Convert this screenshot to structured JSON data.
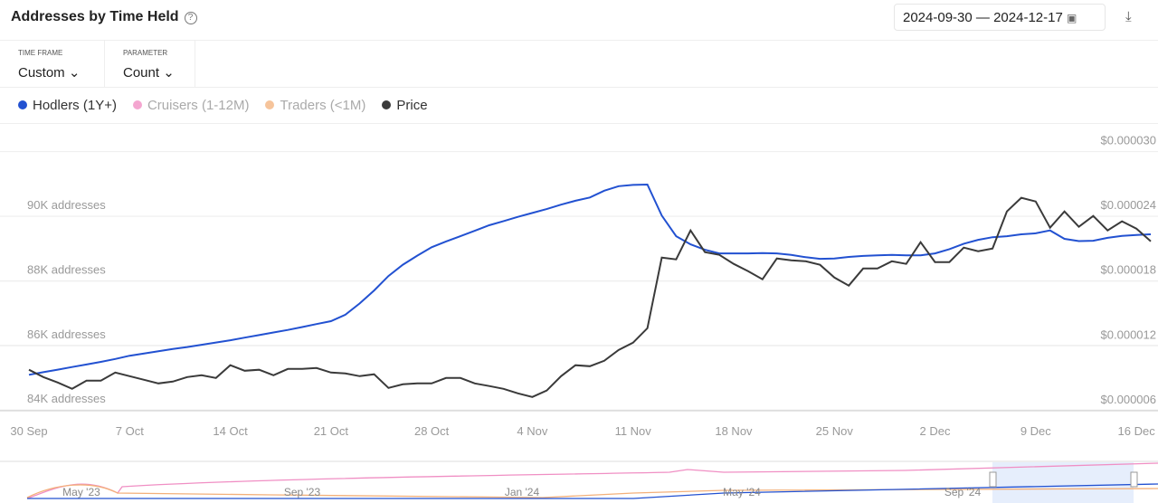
{
  "header": {
    "title": "Addresses by Time Held",
    "date_from": "2024-09-30",
    "date_separator": "—",
    "date_to": "2024-12-17"
  },
  "controls": [
    {
      "label": "TIME FRAME",
      "value": "Custom"
    },
    {
      "label": "PARAMETER",
      "value": "Count"
    }
  ],
  "navigator": {
    "labels": [
      "May '23",
      "Sep '23",
      "Jan '24",
      "May '24",
      "Sep '24"
    ]
  },
  "chart_data": {
    "type": "line",
    "categories": [
      "30 Sep",
      null,
      null,
      null,
      null,
      null,
      null,
      "7 Oct",
      null,
      null,
      null,
      null,
      null,
      null,
      "14 Oct",
      null,
      null,
      null,
      null,
      null,
      null,
      "21 Oct",
      null,
      null,
      null,
      null,
      null,
      null,
      "28 Oct",
      null,
      null,
      null,
      null,
      null,
      null,
      "4 Nov",
      null,
      null,
      null,
      null,
      null,
      null,
      "11 Nov",
      null,
      null,
      null,
      null,
      null,
      null,
      "18 Nov",
      null,
      null,
      null,
      null,
      null,
      null,
      "25 Nov",
      null,
      null,
      null,
      null,
      null,
      null,
      "2 Dec",
      null,
      null,
      null,
      null,
      null,
      null,
      "9 Dec",
      null,
      null,
      null,
      null,
      null,
      null,
      "16 Dec",
      null
    ],
    "series": [
      {
        "name": "Hodlers (1Y+)",
        "color": "#2251d1",
        "values": [
          85090,
          85170,
          85250,
          85330,
          85410,
          85490,
          85580,
          85680,
          85750,
          85820,
          85890,
          85950,
          86020,
          86090,
          86160,
          86240,
          86320,
          86400,
          86480,
          86570,
          86660,
          86750,
          86950,
          87300,
          87700,
          88150,
          88500,
          88780,
          89040,
          89220,
          89380,
          89550,
          89720,
          89850,
          89980,
          90100,
          90220,
          90360,
          90480,
          90580,
          90790,
          90930,
          90970,
          90980,
          90020,
          89380,
          89130,
          88960,
          88850,
          88850,
          88850,
          88860,
          88850,
          88800,
          88730,
          88680,
          88690,
          88740,
          88770,
          88790,
          88800,
          88790,
          88790,
          88850,
          88980,
          89150,
          89270,
          89350,
          89380,
          89440,
          89470,
          89560,
          89300,
          89230,
          89240,
          89330,
          89390,
          89420,
          89440
        ]
      },
      {
        "name": "Cruisers (1-12M)",
        "color": "#f4a6d0",
        "hidden": true
      },
      {
        "name": "Traders (<1M)",
        "color": "#f6c49b",
        "hidden": true
      },
      {
        "name": "Price",
        "color": "#3a3a3a",
        "axis": "y2",
        "values": [
          9.78e-06,
          9.1e-06,
          8.6e-06,
          8.01e-06,
          8.77e-06,
          8.77e-06,
          9.52e-06,
          9.19e-06,
          8.85e-06,
          8.52e-06,
          8.68e-06,
          9.1e-06,
          9.27e-06,
          9.02e-06,
          1.02e-05,
          9.69e-06,
          9.78e-06,
          9.27e-06,
          9.86e-06,
          9.86e-06,
          9.94e-06,
          9.52e-06,
          9.44e-06,
          9.19e-06,
          9.36e-06,
          8.1e-06,
          8.43e-06,
          8.52e-06,
          8.52e-06,
          9.02e-06,
          9.02e-06,
          8.52e-06,
          8.27e-06,
          8.01e-06,
          7.59e-06,
          7.26e-06,
          7.85e-06,
          9.19e-06,
          1.02e-05,
          1.011e-05,
          1.061e-05,
          1.162e-05,
          1.229e-05,
          1.363e-05,
          2.018e-05,
          2.001e-05,
          2.27e-05,
          2.068e-05,
          2.043e-05,
          1.959e-05,
          1.892e-05,
          1.817e-05,
          2.01e-05,
          1.993e-05,
          1.984e-05,
          1.951e-05,
          1.833e-05,
          1.758e-05,
          1.917e-05,
          1.917e-05,
          1.984e-05,
          1.959e-05,
          2.161e-05,
          1.976e-05,
          1.976e-05,
          2.11e-05,
          2.077e-05,
          2.102e-05,
          2.446e-05,
          2.572e-05,
          2.538e-05,
          2.295e-05,
          2.446e-05,
          2.303e-05,
          2.404e-05,
          2.27e-05,
          2.354e-05,
          2.286e-05,
          2.169e-05
        ]
      }
    ],
    "ylim": [
      83950,
      92000
    ],
    "yticks": [
      {
        "value": 84000,
        "label": "84K addresses"
      },
      {
        "value": 86000,
        "label": "86K addresses"
      },
      {
        "value": 88000,
        "label": "88K addresses"
      },
      {
        "value": 90000,
        "label": "90K addresses"
      }
    ],
    "y2lim": [
      5.9e-06,
      3e-05
    ],
    "y2ticks": [
      {
        "value": 6e-06,
        "label": "$0.000006"
      },
      {
        "value": 1.2e-05,
        "label": "$0.000012"
      },
      {
        "value": 1.8e-05,
        "label": "$0.000018"
      },
      {
        "value": 2.4e-05,
        "label": "$0.000024"
      },
      {
        "value": 3e-05,
        "label": "$0.000030"
      }
    ],
    "grid": true
  }
}
